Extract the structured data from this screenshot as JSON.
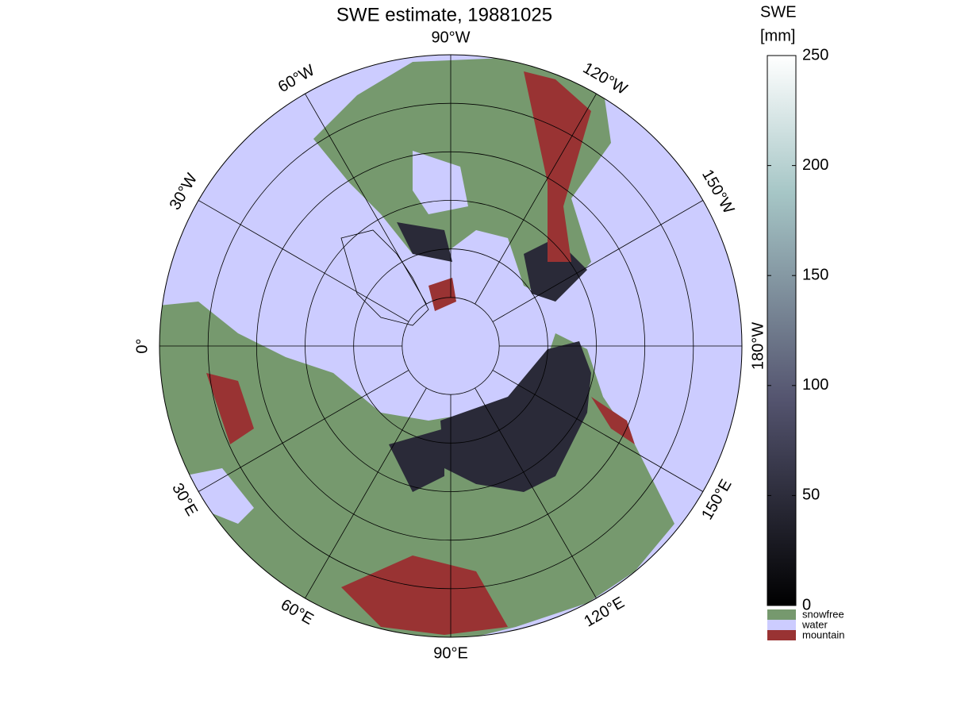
{
  "map": {
    "title": "SWE estimate, 19881025",
    "projection": "north-polar-stereographic",
    "latlim": [
      30,
      90
    ],
    "lat_ticks": [
      80,
      70,
      60,
      50,
      40
    ],
    "lon_ticks": [
      {
        "value": -90,
        "label": "90°W"
      },
      {
        "value": -120,
        "label": "120°W"
      },
      {
        "value": -150,
        "label": "150°W"
      },
      {
        "value": 180,
        "label": "180°W"
      },
      {
        "value": 150,
        "label": "150°E"
      },
      {
        "value": 120,
        "label": "120°E"
      },
      {
        "value": 90,
        "label": "90°E"
      },
      {
        "value": 60,
        "label": "60°E"
      },
      {
        "value": 30,
        "label": "30°E"
      },
      {
        "value": 0,
        "label": "0°"
      },
      {
        "value": -30,
        "label": "30°W"
      },
      {
        "value": -60,
        "label": "60°W"
      }
    ],
    "colorbar": {
      "label": [
        "SWE",
        "[mm]"
      ],
      "lim": [
        0,
        250
      ],
      "ticks": [
        0,
        50,
        100,
        150,
        200,
        250
      ],
      "classes": [
        {
          "name": "snowfree",
          "color": "#76996e"
        },
        {
          "name": "water",
          "color": "#ccccff"
        },
        {
          "name": "mountain",
          "color": "#993333"
        }
      ]
    }
  }
}
